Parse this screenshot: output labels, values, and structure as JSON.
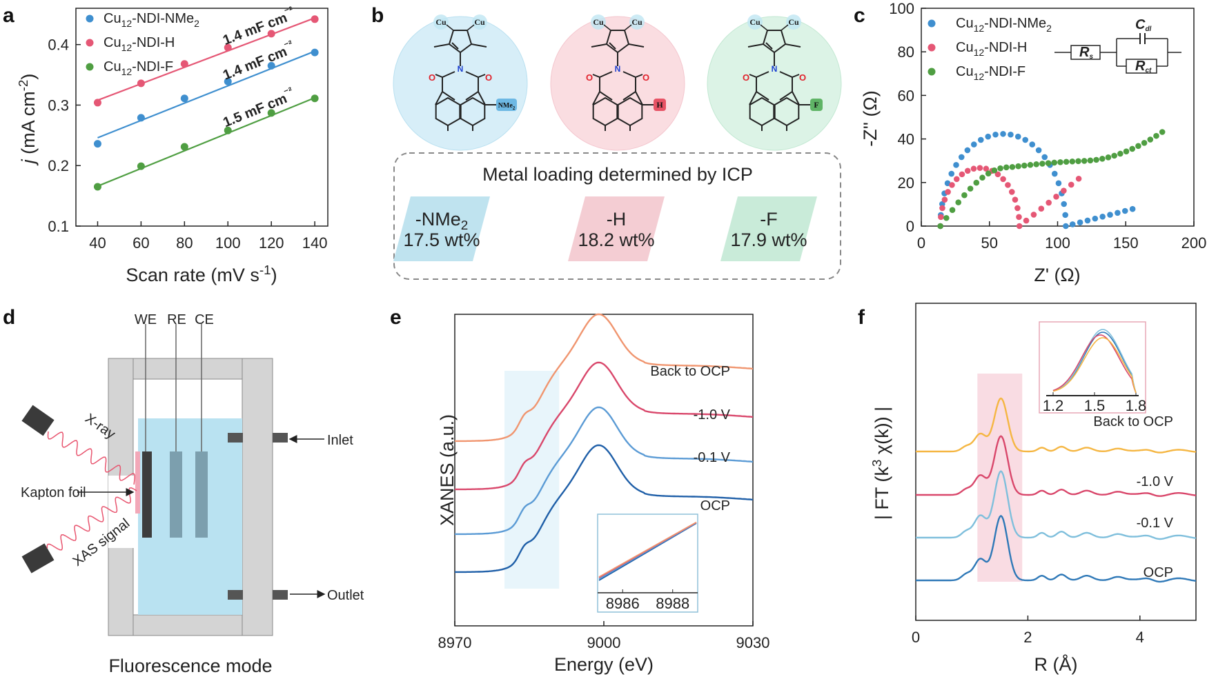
{
  "panels": {
    "a": "a",
    "b": "b",
    "c": "c",
    "d": "d",
    "e": "e",
    "f": "f"
  },
  "chart_data": [
    {
      "id": "a",
      "type": "scatter",
      "xlabel": "Scan rate (mV s⁻¹)",
      "ylabel": "j (mA cm⁻²)",
      "xlim": [
        30,
        146
      ],
      "ylim": [
        0.1,
        0.46
      ],
      "xticks": [
        40,
        60,
        80,
        100,
        120,
        140
      ],
      "yticks": [
        0.1,
        0.2,
        0.3,
        0.4
      ],
      "legend_position": "top-left",
      "series": [
        {
          "name": "Cu12-NDI-NMe2",
          "label_parts": [
            "Cu",
            "12",
            "-NDI-NMe",
            "2"
          ],
          "color": "#3f8fcf",
          "x": [
            40,
            60,
            80,
            100,
            120,
            140
          ],
          "y": [
            0.236,
            0.279,
            0.311,
            0.339,
            0.365,
            0.387
          ],
          "fit": [
            0.246,
            0.389
          ],
          "annotation": "1.4 mF cm⁻²"
        },
        {
          "name": "Cu12-NDI-H",
          "label_parts": [
            "Cu",
            "12",
            "-NDI-H",
            ""
          ],
          "color": "#e55775",
          "x": [
            40,
            60,
            80,
            100,
            120,
            140
          ],
          "y": [
            0.304,
            0.336,
            0.368,
            0.395,
            0.418,
            0.442
          ],
          "fit": [
            0.308,
            0.444
          ],
          "annotation": "1.4 mF cm⁻²"
        },
        {
          "name": "Cu12-NDI-F",
          "label_parts": [
            "Cu",
            "12",
            "-NDI-F",
            ""
          ],
          "color": "#4f9e42",
          "x": [
            40,
            60,
            80,
            100,
            120,
            140
          ],
          "y": [
            0.165,
            0.199,
            0.231,
            0.258,
            0.287,
            0.311
          ],
          "fit": [
            0.166,
            0.312
          ],
          "annotation": "1.5 mF cm⁻²"
        }
      ]
    },
    {
      "id": "c",
      "type": "scatter",
      "xlabel": "Z' (Ω)",
      "ylabel": "-Z'' (Ω)",
      "xlim": [
        0,
        200
      ],
      "ylim": [
        0,
        100
      ],
      "xticks": [
        0,
        50,
        100,
        150,
        200
      ],
      "yticks": [
        0,
        20,
        40,
        60,
        80,
        100
      ],
      "legend_position": "top-left",
      "circuit_labels": {
        "rs": "R",
        "rs_sub": "s",
        "cdl": "C",
        "cdl_sub": "dl",
        "rct": "R",
        "rct_sub": "ct"
      },
      "series": [
        {
          "name": "Cu12-NDI-NMe2",
          "label_parts": [
            "Cu",
            "12",
            "-NDI-NMe",
            "2"
          ],
          "color": "#3f8fcf"
        },
        {
          "name": "Cu12-NDI-H",
          "label_parts": [
            "Cu",
            "12",
            "-NDI-H",
            ""
          ],
          "color": "#e55775"
        },
        {
          "name": "Cu12-NDI-F",
          "label_parts": [
            "Cu",
            "12",
            "-NDI-F",
            ""
          ],
          "color": "#4f9e42"
        }
      ]
    },
    {
      "id": "e",
      "type": "line",
      "xlabel": "Energy (eV)",
      "ylabel": "XANES (a.u.)",
      "xlim": [
        8970,
        9030
      ],
      "xticks": [
        8970,
        9000,
        9030
      ],
      "highlight_x": [
        8980,
        8991
      ],
      "inset": {
        "xlim": [
          8985,
          8989
        ],
        "xticks": [
          8986,
          8988
        ]
      },
      "series": [
        {
          "name": "OCP",
          "color": "#1f5fa8"
        },
        {
          "name": "-0.1 V",
          "color": "#5b9bd5"
        },
        {
          "name": "-1.0 V",
          "color": "#d9476b"
        },
        {
          "name": "Back to OCP",
          "color": "#f0956f"
        }
      ]
    },
    {
      "id": "f",
      "type": "line",
      "xlabel": "R (Å)",
      "ylabel": "| FT (k³ χ(k)) |",
      "xlim": [
        0,
        5
      ],
      "xticks": [
        0,
        2,
        4
      ],
      "highlight_x": [
        1.1,
        1.9
      ],
      "inset": {
        "xlim": [
          1.2,
          1.8
        ],
        "xticks": [
          "1.2",
          "1.5",
          "1.8"
        ]
      },
      "series": [
        {
          "name": "OCP",
          "color": "#2e78b7"
        },
        {
          "name": "-0.1 V",
          "color": "#7fbfdc"
        },
        {
          "name": "-1.0 V",
          "color": "#d9476b"
        },
        {
          "name": "Back to OCP",
          "color": "#f5b642"
        }
      ]
    }
  ],
  "panel_b": {
    "substituents": [
      "NMe",
      "H",
      "F"
    ],
    "sub_suffix": [
      "2",
      "",
      ""
    ],
    "cu": "Cu",
    "box_title": "Metal loading determined by ICP",
    "loadings": [
      {
        "label": "-NMe",
        "sub": "2",
        "value": "17.5 wt%",
        "color": "#bfe3ef"
      },
      {
        "label": "-H",
        "sub": "",
        "value": "18.2 wt%",
        "color": "#f4cdd3"
      },
      {
        "label": "-F",
        "sub": "",
        "value": "17.9 wt%",
        "color": "#c9ebd9"
      }
    ]
  },
  "panel_d": {
    "electrodes": [
      "WE",
      "RE",
      "CE"
    ],
    "xray": "X-ray",
    "xas": "XAS signal",
    "kapton": "Kapton foil",
    "inlet": "Inlet",
    "outlet": "Outlet",
    "caption": "Fluorescence mode"
  },
  "colors": {
    "nme2": "#3f8fcf",
    "h": "#e55775",
    "f": "#4f9e42"
  }
}
